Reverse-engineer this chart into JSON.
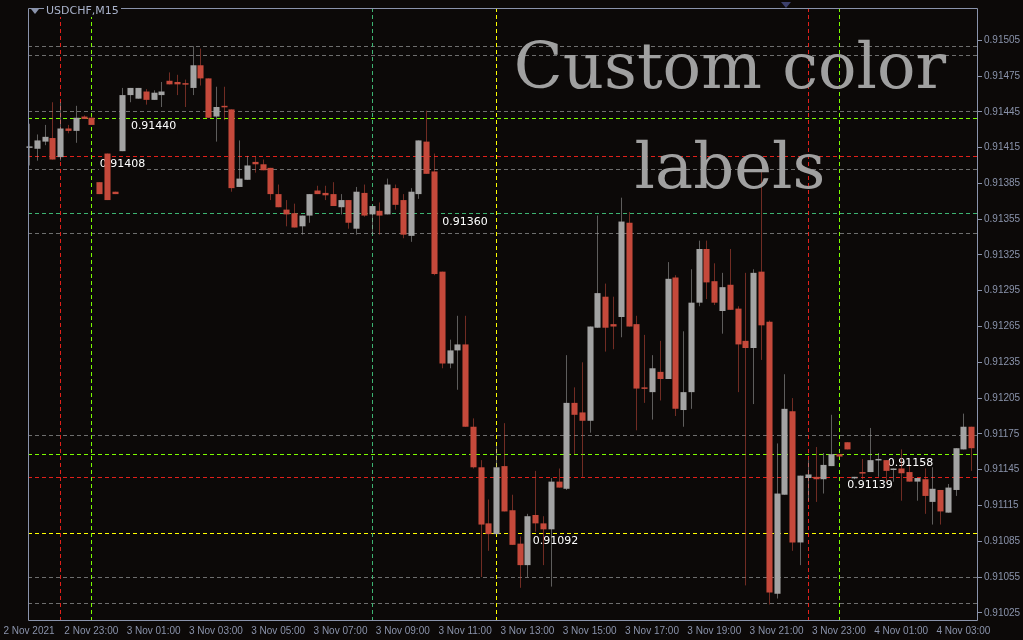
{
  "chart_data": {
    "type": "candlestick",
    "title": "USDCHF,M15",
    "annotations": [
      "Custom color labels",
      {
        "text": "0.91440",
        "x": "2021-11-03T01:00",
        "y": 0.9144
      },
      {
        "text": "0.91408",
        "x": "2021-11-03T00:00",
        "y": 0.91408
      },
      {
        "text": "0.91360",
        "x": "2021-11-03T11:00",
        "y": 0.9136
      },
      {
        "text": "0.91092",
        "x": "2021-11-03T13:54",
        "y": 0.91092
      },
      {
        "text": "0.91158",
        "x": "2021-11-04T01:18",
        "y": 0.91158
      },
      {
        "text": "0.91139",
        "x": "2021-11-04T00:00",
        "y": 0.91139
      }
    ],
    "x": [
      "2021-11-02T21:00",
      "2021-11-02T21:15",
      "2021-11-02T21:30",
      "2021-11-02T21:45",
      "2021-11-02T22:00",
      "2021-11-02T22:15",
      "2021-11-02T22:30",
      "2021-11-02T22:45",
      "2021-11-02T23:00",
      "2021-11-02T23:15",
      "2021-11-02T23:30",
      "2021-11-02T23:45",
      "2021-11-03T00:00",
      "2021-11-03T00:15",
      "2021-11-03T00:30",
      "2021-11-03T00:45",
      "2021-11-03T01:00",
      "2021-11-03T01:15",
      "2021-11-03T01:30",
      "2021-11-03T01:45",
      "2021-11-03T02:00",
      "2021-11-03T02:15",
      "2021-11-03T02:30",
      "2021-11-03T02:45",
      "2021-11-03T03:00",
      "2021-11-03T03:15",
      "2021-11-03T03:30",
      "2021-11-03T03:45",
      "2021-11-03T04:00",
      "2021-11-03T04:15",
      "2021-11-03T04:30",
      "2021-11-03T04:45",
      "2021-11-03T05:00",
      "2021-11-03T05:15",
      "2021-11-03T05:30",
      "2021-11-03T05:45",
      "2021-11-03T06:00",
      "2021-11-03T06:15",
      "2021-11-03T06:30",
      "2021-11-03T06:45",
      "2021-11-03T07:00",
      "2021-11-03T07:15",
      "2021-11-03T07:30",
      "2021-11-03T07:45",
      "2021-11-03T08:00",
      "2021-11-03T08:15",
      "2021-11-03T08:30",
      "2021-11-03T08:45",
      "2021-11-03T09:00",
      "2021-11-03T09:15",
      "2021-11-03T09:30",
      "2021-11-03T09:45",
      "2021-11-03T10:00",
      "2021-11-03T10:15",
      "2021-11-03T10:30",
      "2021-11-03T10:45",
      "2021-11-03T11:00",
      "2021-11-03T11:15",
      "2021-11-03T11:30",
      "2021-11-03T11:45",
      "2021-11-03T12:00",
      "2021-11-03T12:15",
      "2021-11-03T12:30",
      "2021-11-03T12:45",
      "2021-11-03T13:00",
      "2021-11-03T13:15",
      "2021-11-03T13:30",
      "2021-11-03T13:45",
      "2021-11-03T14:00",
      "2021-11-03T14:15",
      "2021-11-03T14:30",
      "2021-11-03T14:45",
      "2021-11-03T15:00",
      "2021-11-03T15:15",
      "2021-11-03T15:30",
      "2021-11-03T15:45",
      "2021-11-03T16:00",
      "2021-11-03T16:15",
      "2021-11-03T16:30",
      "2021-11-03T16:45",
      "2021-11-03T17:00",
      "2021-11-03T17:15",
      "2021-11-03T17:30",
      "2021-11-03T17:45",
      "2021-11-03T18:00",
      "2021-11-03T18:15",
      "2021-11-03T18:30",
      "2021-11-03T18:45",
      "2021-11-03T19:00",
      "2021-11-03T19:15",
      "2021-11-03T19:30",
      "2021-11-03T19:45",
      "2021-11-03T20:00",
      "2021-11-03T20:15",
      "2021-11-03T20:30",
      "2021-11-03T20:45",
      "2021-11-03T21:00",
      "2021-11-03T21:15",
      "2021-11-03T21:30",
      "2021-11-03T21:45",
      "2021-11-03T22:00",
      "2021-11-03T22:15",
      "2021-11-03T22:30",
      "2021-11-03T22:45",
      "2021-11-03T23:00",
      "2021-11-03T23:15",
      "2021-11-03T23:30",
      "2021-11-03T23:45",
      "2021-11-04T00:00",
      "2021-11-04T00:15",
      "2021-11-04T00:30",
      "2021-11-04T00:45",
      "2021-11-04T01:00",
      "2021-11-04T01:15",
      "2021-11-04T01:30",
      "2021-11-04T01:45",
      "2021-11-04T02:00",
      "2021-11-04T02:15",
      "2021-11-04T02:30",
      "2021-11-04T02:45",
      "2021-11-04T03:00",
      "2021-11-04T03:15"
    ],
    "ohlc": [
      [
        0.91415,
        0.91435,
        0.914,
        0.91416
      ],
      [
        0.91414,
        0.91426,
        0.91404,
        0.91421
      ],
      [
        0.9142,
        0.91434,
        0.91417,
        0.91424
      ],
      [
        0.91423,
        0.91453,
        0.91405,
        0.91405
      ],
      [
        0.91407,
        0.91453,
        0.91404,
        0.91431
      ],
      [
        0.91431,
        0.91434,
        0.91427,
        0.91429
      ],
      [
        0.91429,
        0.9145,
        0.91419,
        0.9144
      ],
      [
        0.91441,
        0.91442,
        0.91439,
        0.91439
      ],
      [
        0.9144,
        0.91441,
        0.91434,
        0.91434
      ],
      [
        0.91386,
        0.91386,
        0.91376,
        0.91376
      ],
      [
        0.9141,
        0.9141,
        0.91371,
        0.91371
      ],
      [
        0.91378,
        0.91378,
        0.91376,
        0.91376
      ],
      [
        0.91412,
        0.91465,
        0.91412,
        0.91459
      ],
      [
        0.91459,
        0.91465,
        0.91453,
        0.91465
      ],
      [
        0.91456,
        0.91465,
        0.91456,
        0.91465
      ],
      [
        0.91462,
        0.91464,
        0.91451,
        0.91455
      ],
      [
        0.91455,
        0.91463,
        0.91455,
        0.91461
      ],
      [
        0.91459,
        0.9147,
        0.91449,
        0.91462
      ],
      [
        0.91471,
        0.91478,
        0.91468,
        0.91468
      ],
      [
        0.9147,
        0.91476,
        0.91459,
        0.91468
      ],
      [
        0.91469,
        0.91472,
        0.91449,
        0.91468
      ],
      [
        0.91465,
        0.915,
        0.91459,
        0.91484
      ],
      [
        0.91484,
        0.91498,
        0.91467,
        0.91473
      ],
      [
        0.91473,
        0.91473,
        0.9144,
        0.9144
      ],
      [
        0.91441,
        0.91466,
        0.9142,
        0.91449
      ],
      [
        0.9145,
        0.91466,
        0.91438,
        0.91449
      ],
      [
        0.91447,
        0.91447,
        0.91378,
        0.91381
      ],
      [
        0.91382,
        0.91421,
        0.91382,
        0.91389
      ],
      [
        0.91388,
        0.91408,
        0.91388,
        0.914
      ],
      [
        0.91403,
        0.91408,
        0.91394,
        0.91401
      ],
      [
        0.91401,
        0.91405,
        0.91396,
        0.91396
      ],
      [
        0.91398,
        0.91398,
        0.91371,
        0.91376
      ],
      [
        0.91376,
        0.91384,
        0.91365,
        0.91365
      ],
      [
        0.91363,
        0.91371,
        0.91349,
        0.91359
      ],
      [
        0.9136,
        0.91368,
        0.91348,
        0.91348
      ],
      [
        0.91349,
        0.91358,
        0.91342,
        0.91358
      ],
      [
        0.91358,
        0.91376,
        0.91352,
        0.91376
      ],
      [
        0.91379,
        0.91383,
        0.91376,
        0.91376
      ],
      [
        0.91377,
        0.91383,
        0.91371,
        0.91375
      ],
      [
        0.91376,
        0.91386,
        0.91366,
        0.91366
      ],
      [
        0.91365,
        0.91376,
        0.91359,
        0.91371
      ],
      [
        0.91371,
        0.91371,
        0.91347,
        0.91352
      ],
      [
        0.91347,
        0.91382,
        0.91342,
        0.91378
      ],
      [
        0.91377,
        0.91384,
        0.91357,
        0.91358
      ],
      [
        0.91359,
        0.91366,
        0.91342,
        0.91366
      ],
      [
        0.91362,
        0.91369,
        0.91342,
        0.91358
      ],
      [
        0.91359,
        0.91389,
        0.91359,
        0.91384
      ],
      [
        0.91381,
        0.91384,
        0.91363,
        0.91367
      ],
      [
        0.91371,
        0.91376,
        0.91339,
        0.91342
      ],
      [
        0.91341,
        0.91381,
        0.91336,
        0.91378
      ],
      [
        0.91376,
        0.91421,
        0.91372,
        0.91421
      ],
      [
        0.9142,
        0.91446,
        0.91393,
        0.91393
      ],
      [
        0.91395,
        0.9141,
        0.91308,
        0.91309
      ],
      [
        0.91311,
        0.91311,
        0.9123,
        0.91234
      ],
      [
        0.91234,
        0.91254,
        0.9123,
        0.91245
      ],
      [
        0.91245,
        0.91274,
        0.91212,
        0.9125
      ],
      [
        0.9125,
        0.91274,
        0.91181,
        0.91181
      ],
      [
        0.91181,
        0.91188,
        0.91146,
        0.91147
      ],
      [
        0.91147,
        0.91153,
        0.91055,
        0.91099
      ],
      [
        0.911,
        0.9112,
        0.91077,
        0.91091
      ],
      [
        0.91091,
        0.91165,
        0.91091,
        0.91147
      ],
      [
        0.91148,
        0.91184,
        0.9111,
        0.9111
      ],
      [
        0.91111,
        0.91124,
        0.91082,
        0.91082
      ],
      [
        0.91083,
        0.91089,
        0.91046,
        0.91065
      ],
      [
        0.91065,
        0.91108,
        0.91055,
        0.91106
      ],
      [
        0.91107,
        0.91144,
        0.91093,
        0.911
      ],
      [
        0.911,
        0.91106,
        0.91065,
        0.91095
      ],
      [
        0.91095,
        0.91138,
        0.91047,
        0.91135
      ],
      [
        0.91135,
        0.91146,
        0.9113,
        0.9113
      ],
      [
        0.91129,
        0.91241,
        0.91128,
        0.91201
      ],
      [
        0.91201,
        0.91214,
        0.91158,
        0.91191
      ],
      [
        0.91193,
        0.91235,
        0.91139,
        0.91186
      ],
      [
        0.91186,
        0.91265,
        0.91176,
        0.91265
      ],
      [
        0.91264,
        0.91358,
        0.91264,
        0.91293
      ],
      [
        0.9129,
        0.91301,
        0.91244,
        0.91264
      ],
      [
        0.91267,
        0.9129,
        0.91246,
        0.91265
      ],
      [
        0.91273,
        0.91373,
        0.91256,
        0.91353
      ],
      [
        0.91352,
        0.91361,
        0.91265,
        0.91265
      ],
      [
        0.91267,
        0.91274,
        0.91178,
        0.91213
      ],
      [
        0.91214,
        0.91258,
        0.91201,
        0.91213
      ],
      [
        0.9121,
        0.91241,
        0.91187,
        0.9123
      ],
      [
        0.91227,
        0.91253,
        0.91203,
        0.91221
      ],
      [
        0.91221,
        0.91319,
        0.91221,
        0.91305
      ],
      [
        0.91306,
        0.91308,
        0.9119,
        0.91196
      ],
      [
        0.91195,
        0.91261,
        0.91181,
        0.9121
      ],
      [
        0.9121,
        0.91313,
        0.91196,
        0.91285
      ],
      [
        0.91285,
        0.91337,
        0.91282,
        0.9133
      ],
      [
        0.9133,
        0.91337,
        0.91288,
        0.91302
      ],
      [
        0.91303,
        0.91318,
        0.91283,
        0.91285
      ],
      [
        0.91278,
        0.9131,
        0.91259,
        0.91298
      ],
      [
        0.913,
        0.9133,
        0.91279,
        0.91279
      ],
      [
        0.9128,
        0.91282,
        0.9121,
        0.9125
      ],
      [
        0.91253,
        0.9131,
        0.91048,
        0.91247
      ],
      [
        0.91247,
        0.91313,
        0.912,
        0.9131
      ],
      [
        0.91311,
        0.91397,
        0.91237,
        0.91266
      ],
      [
        0.91269,
        0.9127,
        0.91032,
        0.91042
      ],
      [
        0.91041,
        0.91167,
        0.91037,
        0.91125
      ],
      [
        0.91124,
        0.91225,
        0.91124,
        0.91196
      ],
      [
        0.91194,
        0.91205,
        0.91077,
        0.91084
      ],
      [
        0.91084,
        0.9114,
        0.91065,
        0.9114
      ],
      [
        0.91138,
        0.91153,
        0.91119,
        0.91141
      ],
      [
        0.91139,
        0.91164,
        0.91118,
        0.91137
      ],
      [
        0.91137,
        0.91159,
        0.91125,
        0.91149
      ],
      [
        0.91148,
        0.91191,
        0.91148,
        0.91158
      ],
      [
        0.91158,
        0.91158,
        0.91156,
        0.91156
      ],
      [
        0.91168,
        0.91168,
        0.91162,
        0.91162
      ],
      [
        0.91138,
        0.91139,
        0.91137,
        0.91139
      ],
      [
        0.91143,
        0.91154,
        0.91137,
        0.91142
      ],
      [
        0.91143,
        0.9118,
        0.91143,
        0.91153
      ],
      [
        0.91153,
        0.91159,
        0.91139,
        0.91154
      ],
      [
        0.91153,
        0.91153,
        0.91135,
        0.91144
      ],
      [
        0.91145,
        0.91146,
        0.91135,
        0.91146
      ],
      [
        0.91146,
        0.91162,
        0.91119,
        0.91142
      ],
      [
        0.91143,
        0.91148,
        0.91135,
        0.91135
      ],
      [
        0.91135,
        0.91138,
        0.91119,
        0.91138
      ],
      [
        0.91137,
        0.91146,
        0.91108,
        0.91123
      ],
      [
        0.91118,
        0.91147,
        0.91099,
        0.91129
      ],
      [
        0.91128,
        0.91128,
        0.91099,
        0.9111
      ],
      [
        0.91109,
        0.91133,
        0.91109,
        0.9113
      ],
      [
        0.91128,
        0.91163,
        0.91123,
        0.91163
      ],
      [
        0.91162,
        0.91192,
        0.91162,
        0.91181
      ],
      [
        0.91181,
        0.91181,
        0.91144,
        0.91163
      ]
    ],
    "colors": [
      "#a3a3a3",
      "#a3a3a3",
      "#a3a3a3",
      "#c5493b",
      "#a3a3a3",
      "#c5493b",
      "#a3a3a3",
      "#c5493b",
      "#c5493b",
      "#c5493b",
      "#c5493b",
      "#c5493b",
      "#a3a3a3",
      "#a3a3a3",
      "#a3a3a3",
      "#c5493b",
      "#a3a3a3",
      "#a3a3a3",
      "#c5493b",
      "#c5493b",
      "#c5493b",
      "#a3a3a3",
      "#c5493b",
      "#c5493b",
      "#a3a3a3",
      "#c5493b",
      "#c5493b",
      "#a3a3a3",
      "#a3a3a3",
      "#c5493b",
      "#c5493b",
      "#c5493b",
      "#c5493b",
      "#c5493b",
      "#c5493b",
      "#a3a3a3",
      "#a3a3a3",
      "#c5493b",
      "#c5493b",
      "#c5493b",
      "#a3a3a3",
      "#c5493b",
      "#a3a3a3",
      "#c5493b",
      "#a3a3a3",
      "#c5493b",
      "#a3a3a3",
      "#c5493b",
      "#c5493b",
      "#a3a3a3",
      "#a3a3a3",
      "#c5493b",
      "#c5493b",
      "#c5493b",
      "#a3a3a3",
      "#a3a3a3",
      "#c5493b",
      "#c5493b",
      "#c5493b",
      "#c5493b",
      "#a3a3a3",
      "#c5493b",
      "#c5493b",
      "#c5493b",
      "#a3a3a3",
      "#c5493b",
      "#c5493b",
      "#a3a3a3",
      "#c5493b",
      "#a3a3a3",
      "#c5493b",
      "#c5493b",
      "#a3a3a3",
      "#a3a3a3",
      "#c5493b",
      "#c5493b",
      "#a3a3a3",
      "#c5493b",
      "#c5493b",
      "#c5493b",
      "#a3a3a3",
      "#c5493b",
      "#a3a3a3",
      "#c5493b",
      "#a3a3a3",
      "#a3a3a3",
      "#a3a3a3",
      "#c5493b",
      "#c5493b",
      "#a3a3a3",
      "#c5493b",
      "#c5493b",
      "#c5493b",
      "#a3a3a3",
      "#c5493b",
      "#c5493b",
      "#a3a3a3",
      "#a3a3a3",
      "#c5493b",
      "#a3a3a3",
      "#a3a3a3",
      "#c5493b",
      "#a3a3a3",
      "#a3a3a3",
      "#c5493b",
      "#c5493b",
      "#a3a3a3",
      "#c5493b",
      "#a3a3a3",
      "#a3a3a3",
      "#c5493b",
      "#a3a3a3",
      "#c5493b",
      "#c5493b",
      "#a3a3a3",
      "#c5493b",
      "#a3a3a3",
      "#c5493b",
      "#a3a3a3",
      "#a3a3a3",
      "#a3a3a3",
      "#c5493b"
    ],
    "xlim": [
      "2021-11-02T20:58",
      "2021-11-04T03:28"
    ],
    "xticks": [
      {
        "value": "2021-11-02T21:00",
        "label": "2 Nov 2021"
      },
      {
        "value": "2021-11-02T23:00",
        "label": "2 Nov 23:00"
      },
      {
        "value": "2021-11-03T01:00",
        "label": "3 Nov 01:00"
      },
      {
        "value": "2021-11-03T03:00",
        "label": "3 Nov 03:00"
      },
      {
        "value": "2021-11-03T05:00",
        "label": "3 Nov 05:00"
      },
      {
        "value": "2021-11-03T07:00",
        "label": "3 Nov 07:00"
      },
      {
        "value": "2021-11-03T09:00",
        "label": "3 Nov 09:00"
      },
      {
        "value": "2021-11-03T11:00",
        "label": "3 Nov 11:00"
      },
      {
        "value": "2021-11-03T13:00",
        "label": "3 Nov 13:00"
      },
      {
        "value": "2021-11-03T15:00",
        "label": "3 Nov 15:00"
      },
      {
        "value": "2021-11-03T17:00",
        "label": "3 Nov 17:00"
      },
      {
        "value": "2021-11-03T19:00",
        "label": "3 Nov 19:00"
      },
      {
        "value": "2021-11-03T21:00",
        "label": "3 Nov 21:00"
      },
      {
        "value": "2021-11-03T23:00",
        "label": "3 Nov 23:00"
      },
      {
        "value": "2021-11-04T01:00",
        "label": "4 Nov 01:00"
      },
      {
        "value": "2021-11-04T03:00",
        "label": "4 Nov 03:00"
      }
    ],
    "ylim": [
      0.91019,
      0.91532
    ],
    "yticks": [
      0.91025,
      0.91055,
      0.91085,
      0.91115,
      0.91145,
      0.91175,
      0.91205,
      0.91235,
      0.91265,
      0.91295,
      0.91325,
      0.91355,
      0.91385,
      0.91415,
      0.91445,
      0.91475,
      0.91505
    ],
    "ref_lines": [
      {
        "axis": "y",
        "value": 0.91493,
        "color": "#6e6e6e",
        "line_style": "dashed"
      },
      {
        "axis": "y",
        "value": 0.915,
        "color": "#6e6e6e",
        "line_style": "dashed"
      },
      {
        "axis": "y",
        "value": 0.91446,
        "color": "#6e6e6e",
        "line_style": "dashed"
      },
      {
        "axis": "y",
        "value": 0.9144,
        "color": "#7cfc00",
        "line_style": "dashed"
      },
      {
        "axis": "y",
        "value": 0.91408,
        "color": "#e0201a",
        "line_style": "dashed"
      },
      {
        "axis": "y",
        "value": 0.91397,
        "color": "#6e6e6e",
        "line_style": "dashed"
      },
      {
        "axis": "y",
        "value": 0.9136,
        "color": "#3cb371",
        "line_style": "dashed"
      },
      {
        "axis": "y",
        "value": 0.91343,
        "color": "#6e6e6e",
        "line_style": "dashed"
      },
      {
        "axis": "y",
        "value": 0.91174,
        "color": "#6e6e6e",
        "line_style": "dashed"
      },
      {
        "axis": "y",
        "value": 0.91158,
        "color": "#7cfc00",
        "line_style": "dashed"
      },
      {
        "axis": "y",
        "value": 0.91139,
        "color": "#e0201a",
        "line_style": "dashed"
      },
      {
        "axis": "y",
        "value": 0.91092,
        "color": "#ffff00",
        "line_style": "dashed"
      },
      {
        "axis": "y",
        "value": 0.91055,
        "color": "#6e6e6e",
        "line_style": "dashed"
      },
      {
        "axis": "y",
        "value": 0.91033,
        "color": "#6e6e6e",
        "line_style": "dashed"
      },
      {
        "axis": "x",
        "value": "2021-11-02T22:00",
        "color": "#e0201a",
        "line_style": "dashed"
      },
      {
        "axis": "x",
        "value": "2021-11-02T23:00",
        "color": "#7cfc00",
        "line_style": "dashed"
      },
      {
        "axis": "x",
        "value": "2021-11-03T08:00",
        "color": "#3cb371",
        "line_style": "dashed"
      },
      {
        "axis": "x",
        "value": "2021-11-03T12:00",
        "color": "#ffff00",
        "line_style": "dashed"
      },
      {
        "axis": "x",
        "value": "2021-11-03T22:00",
        "color": "#e0201a",
        "line_style": "dashed"
      },
      {
        "axis": "x",
        "value": "2021-11-03T23:00",
        "color": "#7cfc00",
        "line_style": "dashed"
      }
    ]
  }
}
